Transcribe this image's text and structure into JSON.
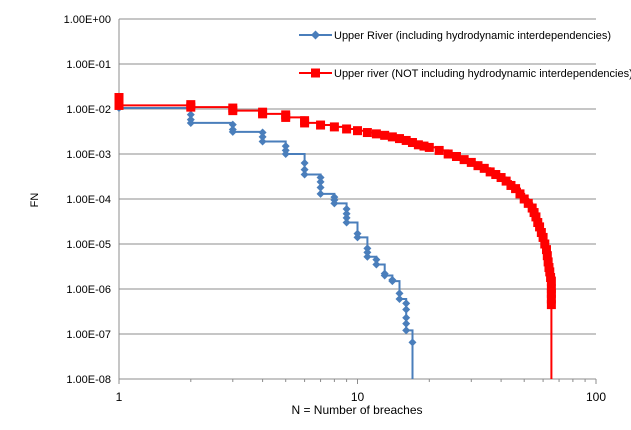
{
  "chart_data": {
    "type": "line",
    "title": "",
    "xlabel": "N = Number of breaches",
    "ylabel": "FN",
    "x_scale": "log",
    "y_scale": "log",
    "xlim": [
      1,
      100
    ],
    "ylim": [
      1e-08,
      1
    ],
    "grid": "horizontal major gridlines",
    "legend_position": "top-right",
    "x_tick_labels": [
      "1",
      "10",
      "100"
    ],
    "y_tick_labels": [
      "1.00E+00",
      "1.00E-01",
      "1.00E-02",
      "1.00E-03",
      "1.00E-04",
      "1.00E-05",
      "1.00E-06",
      "1.00E-07",
      "1.00E-08"
    ],
    "series": [
      {
        "name": "Upper River (including hydrodynamic interdependencies)",
        "legend_line2": "interdependencies)",
        "color": "#4a7ebb",
        "marker": "diamond",
        "step": true,
        "x": [
          1,
          1,
          1,
          2,
          2,
          2,
          3,
          3,
          3,
          4,
          4,
          4,
          5,
          5,
          5,
          6,
          6,
          6,
          7,
          7,
          7,
          7,
          8,
          8,
          8,
          9,
          9,
          9,
          9,
          10,
          10,
          11,
          11,
          11,
          12,
          12,
          13,
          13,
          14,
          14,
          15,
          15,
          16,
          16,
          16,
          16,
          16,
          17
        ],
        "y": [
          0.016,
          0.012,
          0.0105,
          0.0075,
          0.0058,
          0.0049,
          0.0045,
          0.0035,
          0.0031,
          0.003,
          0.0024,
          0.0019,
          0.0015,
          0.0012,
          0.001,
          0.00063,
          0.00045,
          0.00035,
          0.0003,
          0.00024,
          0.00018,
          0.00013,
          0.00011,
          9.5e-05,
          8e-05,
          6e-05,
          4.7e-05,
          3.8e-05,
          3e-05,
          1.7e-05,
          1.4e-05,
          8e-06,
          6.5e-06,
          5.2e-06,
          4.5e-06,
          3.5e-06,
          2.2e-06,
          2e-06,
          1.6e-06,
          1.5e-06,
          8e-07,
          6e-07,
          4.8e-07,
          3.5e-07,
          2.3e-07,
          1.7e-07,
          1.2e-07,
          6.5e-08
        ]
      },
      {
        "name": "Upper river (NOT including hydrodynamic interdependencies)",
        "legend_line2": "interdependencies)",
        "color": "#ff0000",
        "marker": "square",
        "step": true,
        "x": [
          1,
          1,
          1,
          2,
          2,
          3,
          3,
          4,
          4,
          5,
          5,
          6,
          6,
          7,
          8,
          9,
          10,
          11,
          12,
          13,
          14,
          15,
          16,
          17,
          18,
          19,
          20,
          22,
          24,
          26,
          28,
          30,
          32,
          34,
          36,
          38,
          40,
          42,
          44,
          46,
          48,
          50,
          52,
          54,
          55,
          56,
          57,
          58,
          59,
          60,
          61,
          62,
          62.5,
          63,
          63.5,
          64,
          64.5,
          65,
          65,
          65,
          65,
          65
        ],
        "y": [
          0.018,
          0.014,
          0.012,
          0.0125,
          0.011,
          0.0105,
          0.0092,
          0.0085,
          0.0078,
          0.0074,
          0.0065,
          0.0055,
          0.0049,
          0.0044,
          0.004,
          0.0036,
          0.0033,
          0.003,
          0.0028,
          0.0026,
          0.0024,
          0.0022,
          0.002,
          0.0018,
          0.0016,
          0.0015,
          0.0014,
          0.0012,
          0.001,
          0.00088,
          0.00075,
          0.00065,
          0.00055,
          0.00048,
          0.0004,
          0.00035,
          0.0003,
          0.00025,
          0.0002,
          0.00017,
          0.00013,
          0.0001,
          8e-05,
          6.3e-05,
          5e-05,
          4e-05,
          3e-05,
          2.4e-05,
          1.8e-05,
          1.4e-05,
          1e-05,
          7.5e-06,
          5.5e-06,
          4e-06,
          3e-06,
          2.4e-06,
          1.8e-06,
          1.5e-06,
          1e-06,
          8e-07,
          6e-07,
          4.5e-07
        ]
      }
    ]
  }
}
